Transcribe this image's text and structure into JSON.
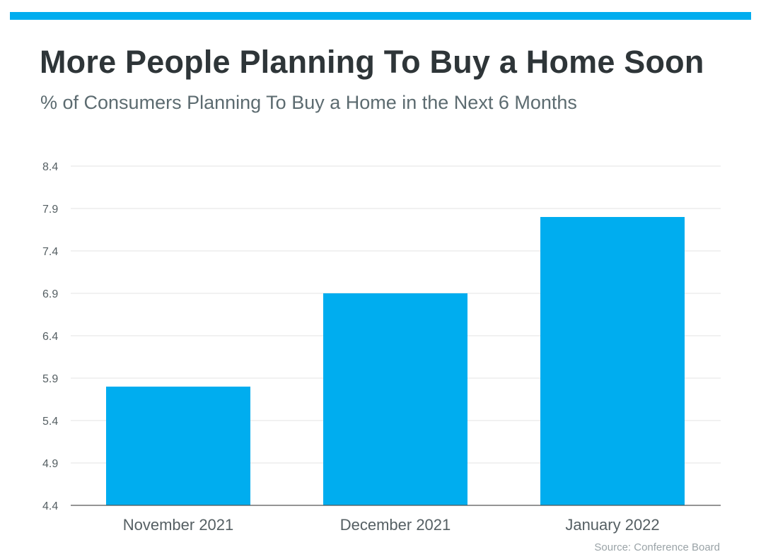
{
  "header": {
    "title": "More People Planning To Buy a Home Soon",
    "subtitle": "% of Consumers Planning To Buy a Home in the Next 6 Months"
  },
  "footer": {
    "source": "Source: Conference Board"
  },
  "colors": {
    "accent": "#00adef",
    "bar": "#00adef",
    "title": "#2e3538",
    "subtitle": "#5c6b70",
    "gridline": "#e3e3e3",
    "axis_text": "#555f63"
  },
  "chart_data": {
    "type": "bar",
    "title": "More People Planning To Buy a Home Soon",
    "subtitle": "% of Consumers Planning To Buy a Home in the Next 6 Months",
    "categories": [
      "November 2021",
      "December 2021",
      "January 2022"
    ],
    "values": [
      5.8,
      6.9,
      7.8
    ],
    "xlabel": "",
    "ylabel": "",
    "ylim": [
      4.4,
      8.4
    ],
    "yticks": [
      "4.4",
      "4.9",
      "5.4",
      "5.9",
      "6.4",
      "6.9",
      "7.4",
      "7.9",
      "8.4"
    ],
    "grid": true,
    "legend": "none",
    "source": "Source: Conference Board"
  }
}
